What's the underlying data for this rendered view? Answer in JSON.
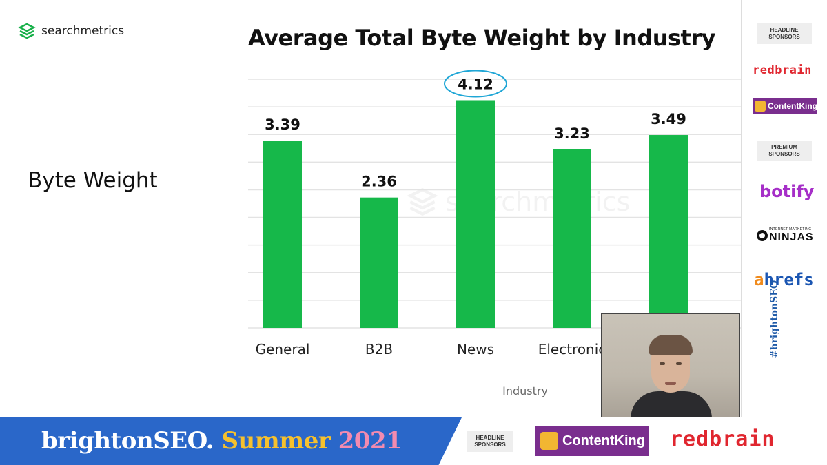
{
  "slide": {
    "logo_text": "searchmetrics",
    "title": "Average Total Byte Weight by Industry",
    "heading": "Byte Weight",
    "watermark_text": "searchmetrics"
  },
  "chart_data": {
    "type": "bar",
    "title": "Average Total Byte Weight by Industry",
    "xlabel": "Industry",
    "ylabel": "",
    "categories": [
      "General",
      "B2B",
      "News",
      "Electronic",
      ""
    ],
    "values": [
      3.39,
      2.36,
      4.12,
      3.23,
      3.49
    ],
    "value_labels": [
      "3.39",
      "2.36",
      "4.12",
      "3.23",
      "3.49"
    ],
    "ylim": [
      0,
      4.5
    ],
    "grid": true,
    "bar_color": "#16b84a",
    "highlight_color": "#1fa6d6",
    "highlighted_index": 2
  },
  "sidebar": {
    "headline_label": "HEADLINE SPONSORS",
    "premium_label": "PREMIUM SPONSORS",
    "redbrain": "redbrain",
    "contentking": "ContentKing",
    "botify": "botify",
    "ninjas_small": "INTERNET MARKETING",
    "ninjas_big": "NINJAS",
    "ahrefs_a": "a",
    "ahrefs_rest": "hrefs",
    "hashtag": "#brightonSEO"
  },
  "banner": {
    "brand": "brightonSEO.",
    "season": "Summer",
    "year": "2021",
    "headline_label": "HEADLINE SPONSORS",
    "contentking": "ContentKing",
    "redbrain": "redbrain"
  },
  "colors": {
    "banner_blue": "#2a67c9",
    "summer_yellow": "#f6c12d",
    "year_pink": "#f38bb0",
    "redbrain_red": "#e0262f",
    "contentking_purple": "#7a2e8e"
  }
}
